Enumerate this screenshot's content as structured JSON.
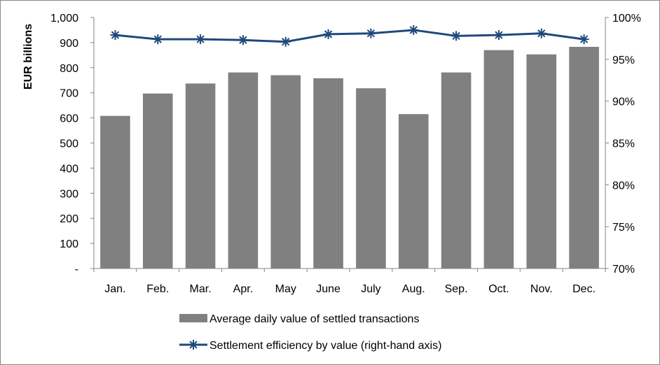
{
  "chart_data": {
    "type": "bar",
    "categories": [
      "Jan.",
      "Feb.",
      "Mar.",
      "Apr.",
      "May",
      "June",
      "July",
      "Aug.",
      "Sep.",
      "Oct.",
      "Nov.",
      "Dec."
    ],
    "ylabel": "EUR billions",
    "ylim": [
      0,
      1000
    ],
    "y_ticks": [
      {
        "value": 0,
        "label": "-"
      },
      {
        "value": 100,
        "label": "100"
      },
      {
        "value": 200,
        "label": "200"
      },
      {
        "value": 300,
        "label": "300"
      },
      {
        "value": 400,
        "label": "400"
      },
      {
        "value": 500,
        "label": "500"
      },
      {
        "value": 600,
        "label": "600"
      },
      {
        "value": 700,
        "label": "700"
      },
      {
        "value": 800,
        "label": "800"
      },
      {
        "value": 900,
        "label": "900"
      },
      {
        "value": 1000,
        "label": "1,000"
      }
    ],
    "y2lim": [
      0.7,
      1.0
    ],
    "y2_ticks": [
      {
        "value": 0.7,
        "label": "70%"
      },
      {
        "value": 0.75,
        "label": "75%"
      },
      {
        "value": 0.8,
        "label": "80%"
      },
      {
        "value": 0.85,
        "label": "85%"
      },
      {
        "value": 0.9,
        "label": "90%"
      },
      {
        "value": 0.95,
        "label": "95%"
      },
      {
        "value": 1.0,
        "label": "100%"
      }
    ],
    "grid": false,
    "legend_position": "bottom",
    "series": [
      {
        "name": "Average daily value of settled transactions",
        "type": "bar",
        "axis": "left",
        "color": "#808080",
        "values": [
          608,
          697,
          737,
          781,
          770,
          758,
          718,
          615,
          781,
          870,
          853,
          883
        ]
      },
      {
        "name": "Settlement efficiency by value (right-hand axis)",
        "type": "line",
        "axis": "right",
        "marker": "asterisk",
        "color": "#1F497D",
        "values": [
          0.979,
          0.974,
          0.974,
          0.973,
          0.971,
          0.98,
          0.981,
          0.985,
          0.978,
          0.979,
          0.981,
          0.974
        ]
      }
    ]
  }
}
